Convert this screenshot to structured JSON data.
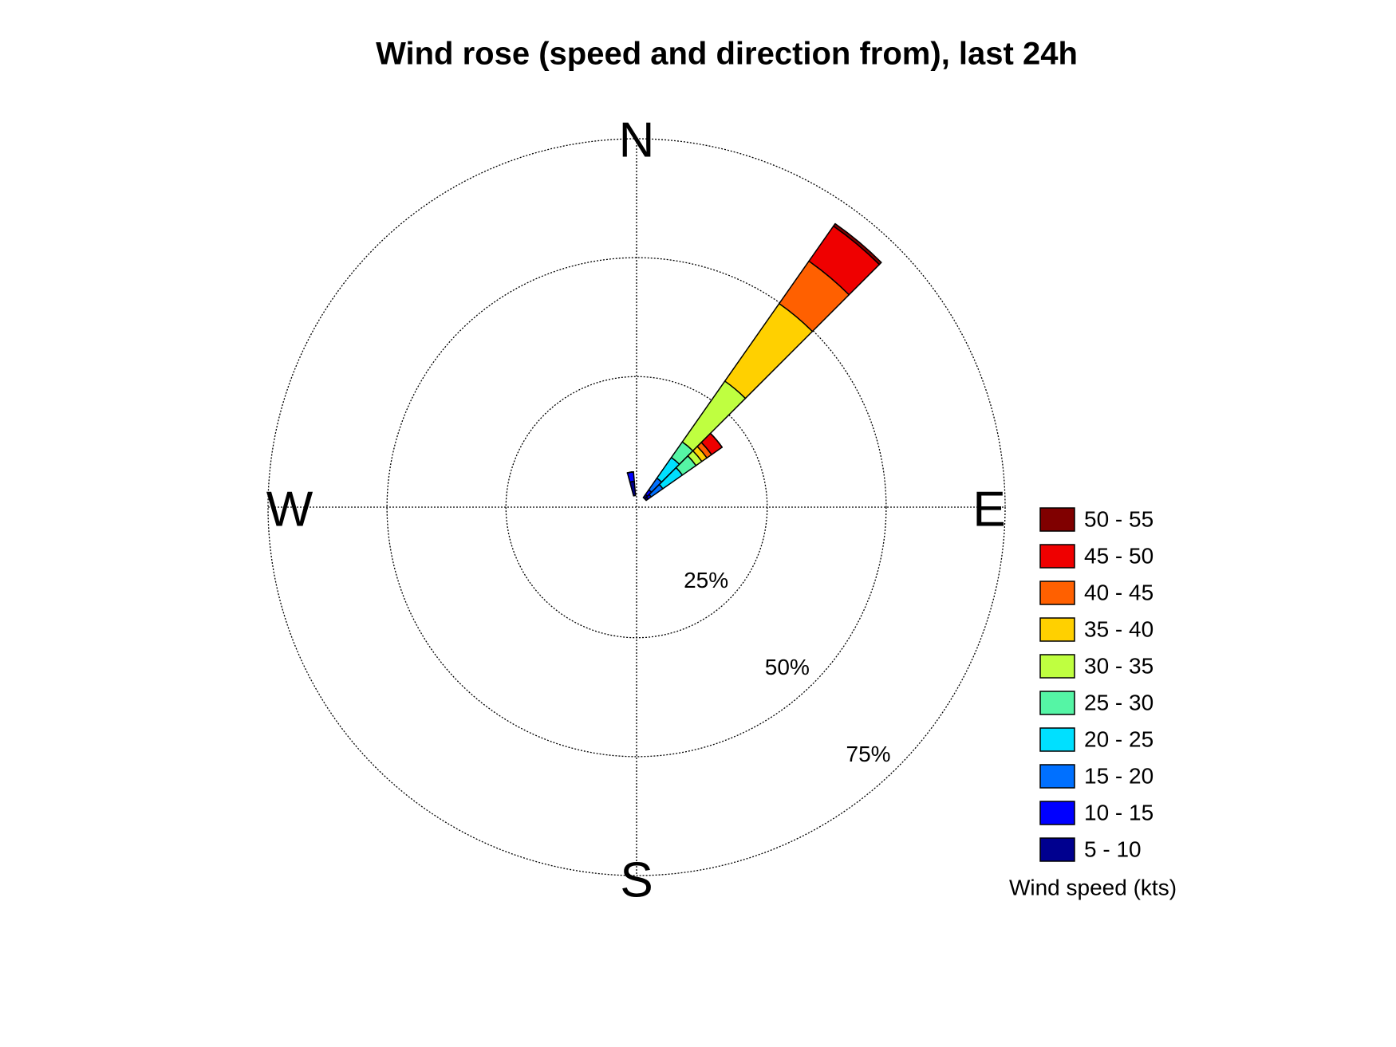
{
  "chart_data": {
    "type": "windrose",
    "title": "Wind rose (speed and direction from), last 24h",
    "directions": [
      350,
      40,
      50
    ],
    "cardinals": [
      "N",
      "E",
      "S",
      "W"
    ],
    "rlim": [
      0,
      75
    ],
    "rticks": [
      {
        "value": 25,
        "label": "25%"
      },
      {
        "value": 50,
        "label": "50%"
      },
      {
        "value": 75,
        "label": "75%"
      }
    ],
    "grid": true,
    "legend_title": "Wind speed (kts)",
    "legend": "right",
    "series": [
      {
        "name": "5 - 10",
        "color": "#00008f",
        "values": [
          3,
          0.8,
          0.5
        ]
      },
      {
        "name": "10 - 15",
        "color": "#0000ff",
        "values": [
          2,
          1.2,
          0.8
        ]
      },
      {
        "name": "15 - 20",
        "color": "#0070ff",
        "values": [
          0,
          3,
          3
        ]
      },
      {
        "name": "20 - 25",
        "color": "#00e0ff",
        "values": [
          0,
          5.3,
          5
        ]
      },
      {
        "name": "25 - 30",
        "color": "#55f5a5",
        "values": [
          0,
          4,
          3.5
        ]
      },
      {
        "name": "30 - 35",
        "color": "#bfff40",
        "values": [
          0,
          15.6,
          1.5
        ]
      },
      {
        "name": "35 - 40",
        "color": "#ffd000",
        "values": [
          0,
          19.9,
          1.3
        ]
      },
      {
        "name": "40 - 45",
        "color": "#ff6000",
        "values": [
          0,
          10.9,
          1.2
        ]
      },
      {
        "name": "45 - 50",
        "color": "#ef0000",
        "values": [
          0,
          9,
          2.7
        ]
      },
      {
        "name": "50 - 55",
        "color": "#800000",
        "values": [
          0,
          0.6,
          0
        ]
      }
    ]
  }
}
